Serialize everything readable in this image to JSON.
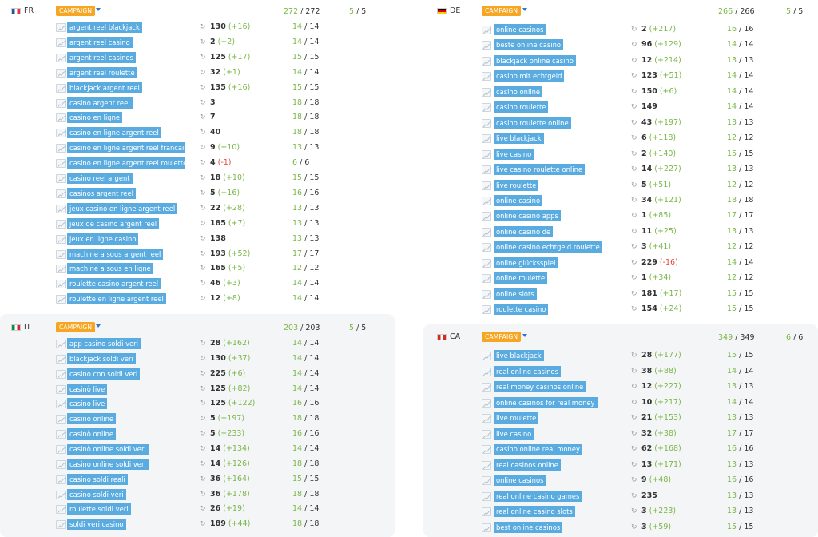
{
  "panels": [
    {
      "id": "fr",
      "country": "FR",
      "flag_colors": [
        "#2255a4",
        "#ffffff",
        "#e1343c"
      ],
      "campaign": "CAMPAIGN",
      "total_a": "272",
      "total_b": "272",
      "pages_a": "5",
      "pages_b": "5",
      "rows": [
        {
          "kw": "argent reel blackjack",
          "rank": "130",
          "change": "(+16)",
          "p": "14"
        },
        {
          "kw": "argent reel casino",
          "rank": "2",
          "change": "(+2)",
          "p": "14"
        },
        {
          "kw": "argent reel casinos",
          "rank": "125",
          "change": "(+17)",
          "p": "15"
        },
        {
          "kw": "argent reel roulette",
          "rank": "32",
          "change": "(+1)",
          "p": "14"
        },
        {
          "kw": "blackjack argent reel",
          "rank": "135",
          "change": "(+16)",
          "p": "15"
        },
        {
          "kw": "casino argent reel",
          "rank": "3",
          "change": "",
          "p": "18"
        },
        {
          "kw": "casino en ligne",
          "rank": "7",
          "change": "",
          "p": "18"
        },
        {
          "kw": "casino en ligne argent reel",
          "rank": "40",
          "change": "",
          "p": "18"
        },
        {
          "kw": "casino en ligne argent reel francais",
          "rank": "9",
          "change": "(+10)",
          "p": "13"
        },
        {
          "kw": "casino en ligne argent reel roulette",
          "rank": "4",
          "change": "(-1)",
          "p": "6"
        },
        {
          "kw": "casino reel argent",
          "rank": "18",
          "change": "(+10)",
          "p": "15"
        },
        {
          "kw": "casinos argent reel",
          "rank": "5",
          "change": "(+16)",
          "p": "16"
        },
        {
          "kw": "jeux casino en ligne argent reel",
          "rank": "22",
          "change": "(+28)",
          "p": "13"
        },
        {
          "kw": "jeux de casino argent reel",
          "rank": "185",
          "change": "(+7)",
          "p": "13"
        },
        {
          "kw": "jeux en ligne casino",
          "rank": "138",
          "change": "",
          "p": "13"
        },
        {
          "kw": "machine a sous argent reel",
          "rank": "193",
          "change": "(+52)",
          "p": "17"
        },
        {
          "kw": "machine a sous en ligne",
          "rank": "165",
          "change": "(+5)",
          "p": "12"
        },
        {
          "kw": "roulette casino argent reel",
          "rank": "46",
          "change": "(+3)",
          "p": "14"
        },
        {
          "kw": "roulette en ligne argent reel",
          "rank": "12",
          "change": "(+8)",
          "p": "14"
        }
      ]
    },
    {
      "id": "it",
      "country": "IT",
      "flag_colors": [
        "#009246",
        "#ffffff",
        "#ce2b37"
      ],
      "campaign": "CAMPAIGN",
      "total_a": "203",
      "total_b": "203",
      "pages_a": "5",
      "pages_b": "5",
      "rows": [
        {
          "kw": "app casino soldi veri",
          "rank": "28",
          "change": "(+162)",
          "p": "14"
        },
        {
          "kw": "blackjack soldi veri",
          "rank": "130",
          "change": "(+37)",
          "p": "14"
        },
        {
          "kw": "casino con soldi veri",
          "rank": "225",
          "change": "(+6)",
          "p": "14"
        },
        {
          "kw": "casinò live",
          "rank": "125",
          "change": "(+82)",
          "p": "14"
        },
        {
          "kw": "casino live",
          "rank": "125",
          "change": "(+122)",
          "p": "16"
        },
        {
          "kw": "casino online",
          "rank": "5",
          "change": "(+197)",
          "p": "18"
        },
        {
          "kw": "casinò online",
          "rank": "5",
          "change": "(+233)",
          "p": "16"
        },
        {
          "kw": "casinò online soldi veri",
          "rank": "14",
          "change": "(+134)",
          "p": "14"
        },
        {
          "kw": "casino online soldi veri",
          "rank": "14",
          "change": "(+126)",
          "p": "18"
        },
        {
          "kw": "casino soldi reali",
          "rank": "36",
          "change": "(+164)",
          "p": "15"
        },
        {
          "kw": "casino soldi veri",
          "rank": "36",
          "change": "(+178)",
          "p": "18"
        },
        {
          "kw": "roulette soldi veri",
          "rank": "26",
          "change": "(+19)",
          "p": "14"
        },
        {
          "kw": "soldi veri casino",
          "rank": "189",
          "change": "(+44)",
          "p": "18"
        }
      ]
    },
    {
      "id": "de",
      "country": "DE",
      "flag_colors": [
        "#000000",
        "#dd0000",
        "#ffce00"
      ],
      "campaign": "CAMPAIGN",
      "total_a": "266",
      "total_b": "266",
      "pages_a": "5",
      "pages_b": "5",
      "rows": [
        {
          "kw": "online casinos",
          "rank": "2",
          "change": "(+217)",
          "p": "16"
        },
        {
          "kw": "beste online casino",
          "rank": "96",
          "change": "(+129)",
          "p": "14"
        },
        {
          "kw": "blackjack online casino",
          "rank": "12",
          "change": "(+214)",
          "p": "13"
        },
        {
          "kw": "casino mit echtgeld",
          "rank": "123",
          "change": "(+51)",
          "p": "14"
        },
        {
          "kw": "casino online",
          "rank": "150",
          "change": "(+6)",
          "p": "14"
        },
        {
          "kw": "casino roulette",
          "rank": "149",
          "change": "",
          "p": "14"
        },
        {
          "kw": "casino roulette online",
          "rank": "43",
          "change": "(+197)",
          "p": "13"
        },
        {
          "kw": "live blackjack",
          "rank": "6",
          "change": "(+118)",
          "p": "12"
        },
        {
          "kw": "live casino",
          "rank": "2",
          "change": "(+140)",
          "p": "15"
        },
        {
          "kw": "live casino roulette online",
          "rank": "14",
          "change": "(+227)",
          "p": "13"
        },
        {
          "kw": "live roulette",
          "rank": "5",
          "change": "(+51)",
          "p": "12"
        },
        {
          "kw": "online casino",
          "rank": "34",
          "change": "(+121)",
          "p": "18"
        },
        {
          "kw": "online casino apps",
          "rank": "1",
          "change": "(+85)",
          "p": "17"
        },
        {
          "kw": "online casino de",
          "rank": "11",
          "change": "(+25)",
          "p": "13"
        },
        {
          "kw": "online casino echtgeld roulette",
          "rank": "3",
          "change": "(+41)",
          "p": "12"
        },
        {
          "kw": "online glücksspiel",
          "rank": "229",
          "change": "(-16)",
          "p": "14"
        },
        {
          "kw": "online roulette",
          "rank": "1",
          "change": "(+34)",
          "p": "12"
        },
        {
          "kw": "online slots",
          "rank": "181",
          "change": "(+17)",
          "p": "15"
        },
        {
          "kw": "roulette casino",
          "rank": "154",
          "change": "(+24)",
          "p": "15"
        }
      ]
    },
    {
      "id": "ca",
      "country": "CA",
      "flag_colors": [
        "#d52b1e",
        "#ffffff",
        "#d52b1e"
      ],
      "campaign": "CAMPAIGN",
      "total_a": "349",
      "total_b": "349",
      "pages_a": "6",
      "pages_b": "6",
      "rows": [
        {
          "kw": "live blackjack",
          "rank": "28",
          "change": "(+177)",
          "p": "15"
        },
        {
          "kw": "real online casinos",
          "rank": "38",
          "change": "(+88)",
          "p": "14"
        },
        {
          "kw": "real money casinos online",
          "rank": "12",
          "change": "(+227)",
          "p": "13"
        },
        {
          "kw": "online casinos for real money",
          "rank": "10",
          "change": "(+217)",
          "p": "14"
        },
        {
          "kw": "live roulette",
          "rank": "21",
          "change": "(+153)",
          "p": "13"
        },
        {
          "kw": "live casino",
          "rank": "32",
          "change": "(+38)",
          "p": "17"
        },
        {
          "kw": "casino online real money",
          "rank": "62",
          "change": "(+168)",
          "p": "16"
        },
        {
          "kw": "real casinos online",
          "rank": "13",
          "change": "(+171)",
          "p": "13"
        },
        {
          "kw": "online casinos",
          "rank": "9",
          "change": "(+48)",
          "p": "16"
        },
        {
          "kw": "real online casino games",
          "rank": "235",
          "change": "",
          "p": "13"
        },
        {
          "kw": "real online casino slots",
          "rank": "3",
          "change": "(+223)",
          "p": "13"
        },
        {
          "kw": "best online casinos",
          "rank": "3",
          "change": "(+59)",
          "p": "15"
        }
      ]
    }
  ]
}
